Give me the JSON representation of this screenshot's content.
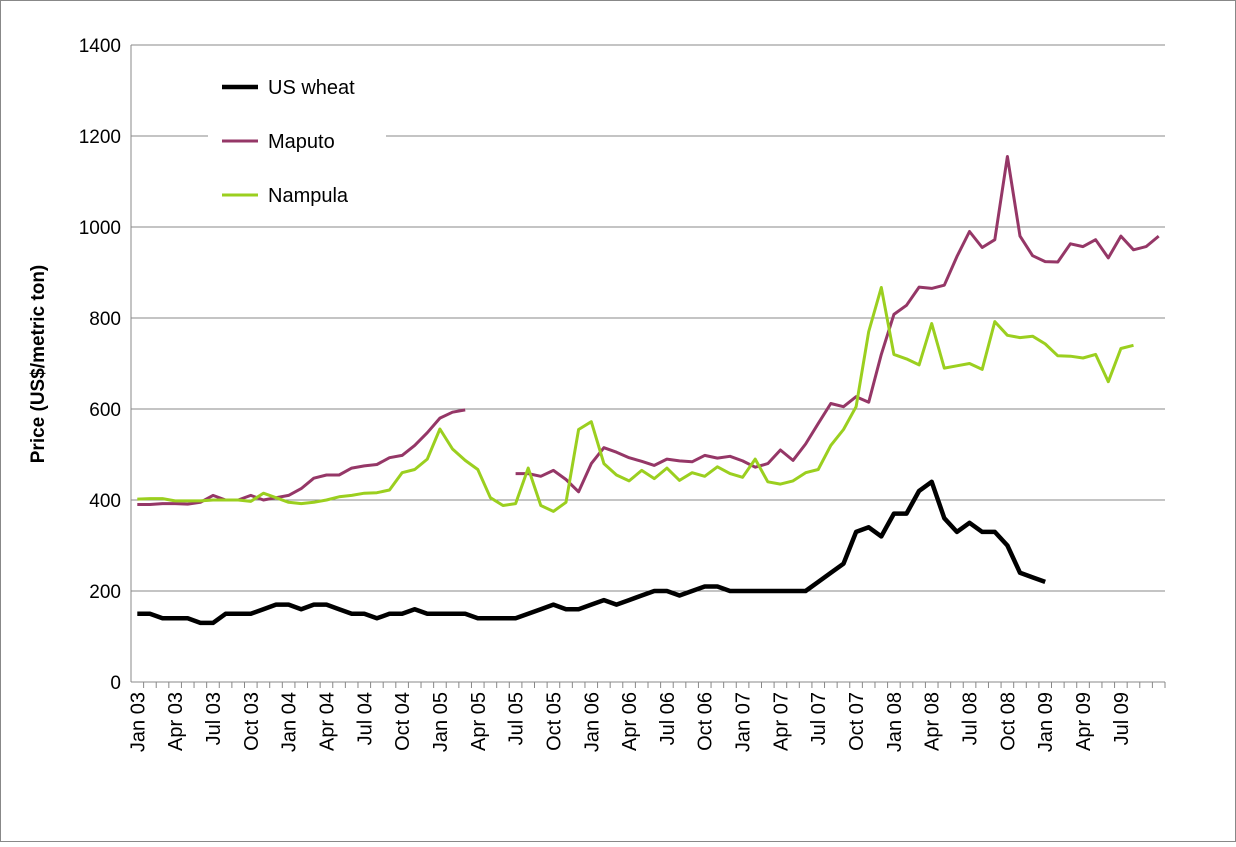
{
  "chart_data": {
    "type": "line",
    "y_label": "Price (US$/metric ton)",
    "categories": [
      "Jan 03",
      null,
      null,
      "Apr 03",
      null,
      null,
      "Jul 03",
      null,
      null,
      "Oct 03",
      null,
      null,
      "Jan 04",
      null,
      null,
      "Apr 04",
      null,
      null,
      "Jul 04",
      null,
      null,
      "Oct 04",
      null,
      null,
      "Jan 05",
      null,
      null,
      "Apr 05",
      null,
      null,
      "Jul 05",
      null,
      null,
      "Oct 05",
      null,
      null,
      "Jan 06",
      null,
      null,
      "Apr 06",
      null,
      null,
      "Jul 06",
      null,
      null,
      "Oct 06",
      null,
      null,
      "Jan 07",
      null,
      null,
      "Apr 07",
      null,
      null,
      "Jul 07",
      null,
      null,
      "Oct 07",
      null,
      null,
      "Jan 08",
      null,
      null,
      "Apr 08",
      null,
      null,
      "Jul 08",
      null,
      null,
      "Oct 08",
      null,
      null,
      "Jan 09",
      null,
      null,
      "Apr 09",
      null,
      null,
      "Jul 09",
      null,
      null,
      null
    ],
    "series": [
      {
        "name": "US wheat",
        "color": "#000000",
        "values": [
          150,
          150,
          140,
          140,
          140,
          130,
          130,
          150,
          150,
          150,
          160,
          170,
          170,
          160,
          170,
          170,
          160,
          150,
          150,
          140,
          150,
          150,
          160,
          150,
          150,
          150,
          150,
          140,
          140,
          140,
          140,
          150,
          160,
          170,
          160,
          160,
          170,
          180,
          170,
          180,
          190,
          200,
          200,
          190,
          200,
          210,
          210,
          200,
          200,
          200,
          200,
          200,
          200,
          200,
          220,
          240,
          260,
          330,
          340,
          320,
          370,
          370,
          420,
          440,
          360,
          330,
          350,
          330,
          330,
          300,
          240,
          230,
          220,
          null,
          null,
          null,
          null,
          null,
          null,
          null,
          null,
          null
        ]
      },
      {
        "name": "Maputo",
        "color": "#953767",
        "values": [
          390,
          390,
          392,
          392,
          391,
          395,
          410,
          400,
          400,
          410,
          400,
          405,
          410,
          425,
          448,
          455,
          455,
          470,
          475,
          478,
          493,
          498,
          520,
          548,
          580,
          593,
          598,
          null,
          null,
          null,
          458,
          458,
          452,
          465,
          445,
          418,
          480,
          515,
          505,
          493,
          485,
          476,
          490,
          486,
          484,
          498,
          492,
          496,
          486,
          472,
          480,
          510,
          487,
          523,
          568,
          612,
          605,
          627,
          615,
          720,
          808,
          828,
          868,
          865,
          872,
          935,
          990,
          955,
          972,
          1155,
          980,
          937,
          924,
          923,
          963,
          957,
          972,
          932,
          980,
          950,
          957,
          980
        ]
      },
      {
        "name": "Nampula",
        "color": "#9bcf1f",
        "values": [
          402,
          403,
          403,
          398,
          398,
          398,
          400,
          400,
          400,
          397,
          415,
          405,
          395,
          392,
          395,
          400,
          407,
          410,
          415,
          416,
          422,
          460,
          467,
          490,
          556,
          512,
          487,
          467,
          405,
          388,
          392,
          470,
          388,
          375,
          395,
          555,
          572,
          480,
          455,
          442,
          465,
          447,
          470,
          443,
          460,
          452,
          473,
          458,
          450,
          490,
          440,
          435,
          442,
          460,
          467,
          520,
          555,
          605,
          770,
          867,
          720,
          710,
          697,
          788,
          690,
          695,
          700,
          687,
          792,
          762,
          757,
          760,
          743,
          717,
          716,
          712,
          720,
          660,
          733,
          740,
          null,
          null
        ]
      }
    ],
    "ylim": [
      0,
      1400
    ],
    "yticks": [
      0,
      200,
      400,
      600,
      800,
      1000,
      1200,
      1400
    ],
    "grid": true,
    "legend": "upper-left"
  }
}
